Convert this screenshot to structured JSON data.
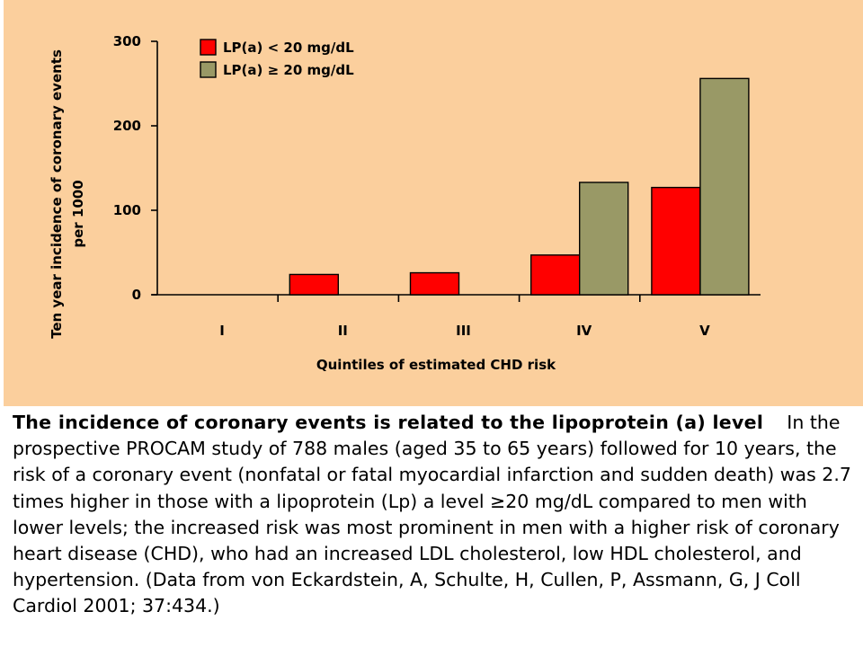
{
  "chart_data": {
    "type": "bar",
    "categories": [
      "I",
      "II",
      "III",
      "IV",
      "V"
    ],
    "series": [
      {
        "name": "LP(a) < 20 mg/dL",
        "values": [
          0,
          24,
          26,
          47,
          127
        ],
        "color": "#ff0000"
      },
      {
        "name": "LP(a) ≥ 20 mg/dL",
        "values": [
          0,
          0,
          0,
          133,
          256
        ],
        "color": "#999966"
      }
    ],
    "title": "",
    "xlabel": "Quintiles of estimated CHD risk",
    "ylabel_line1": "Ten year incidence of coronary events",
    "ylabel_line2": "per 1000",
    "ylim": [
      0,
      300
    ],
    "yticks": [
      0,
      100,
      200,
      300
    ],
    "grid": false,
    "legend_position": "top-left"
  },
  "caption": {
    "bold_text": "The incidence of coronary events is related to the lipoprotein (a) level",
    "body_text": "In the prospective PROCAM study of 788 males (aged 35 to 65 years) followed for 10 years, the risk of a coronary event (nonfatal or fatal myocardial infarction and sudden death) was 2.7 times higher in those with a lipoprotein (Lp) a level ≥20 mg/dL compared to men with lower levels; the increased risk was most prominent in men with a higher risk of coronary heart disease (CHD), who had an increased LDL cholesterol, low HDL cholesterol, and hypertension. (Data from von Eckardstein, A, Schulte, H, Cullen, P, Assmann, G, J Coll Cardiol 2001; 37:434.)"
  }
}
